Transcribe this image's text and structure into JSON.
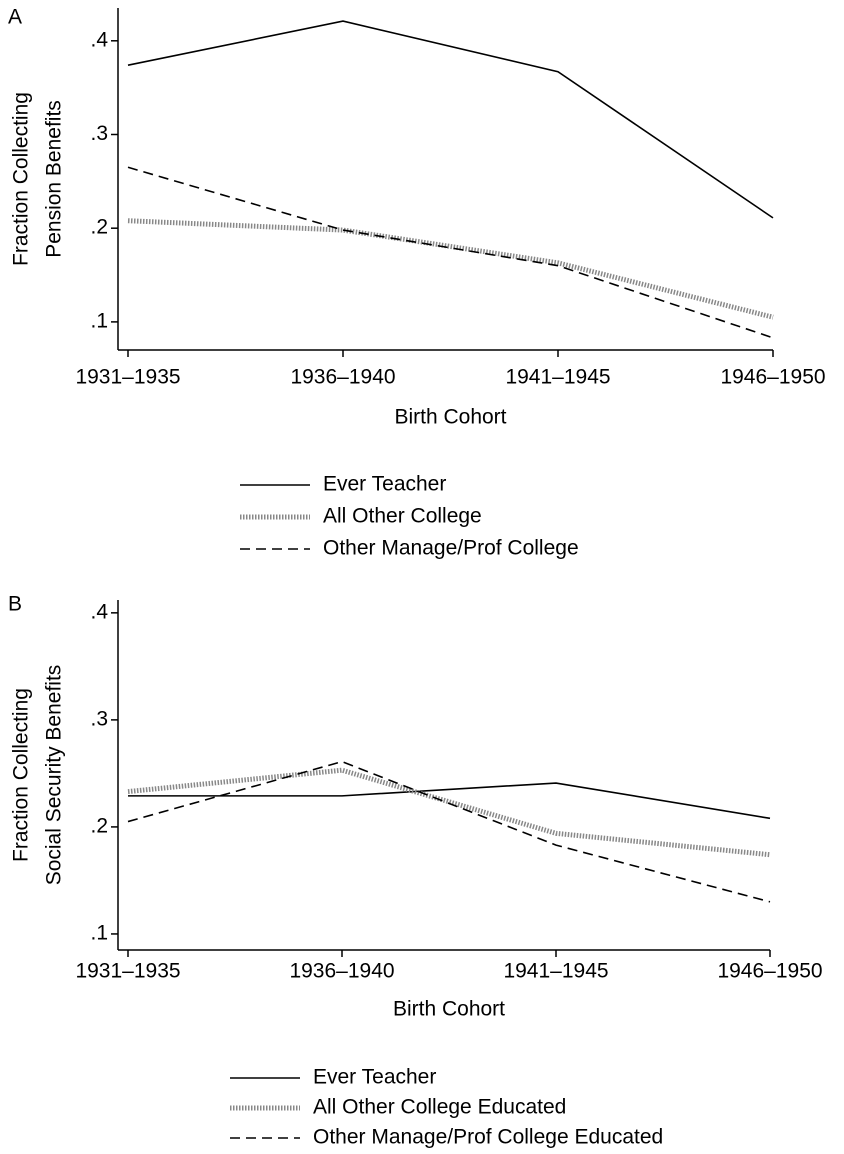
{
  "chart_data": [
    {
      "type": "line",
      "title": "A",
      "y_label": [
        "Fraction Collecting",
        "Pension Benefits"
      ],
      "x_label": "Birth Cohort",
      "categories": [
        "1931–1935",
        "1936–1940",
        "1941–1945",
        "1946–1950"
      ],
      "ylim": [
        0.07,
        0.435
      ],
      "yticks": [
        {
          "value": 0.1,
          "label": ".1"
        },
        {
          "value": 0.2,
          "label": ".2"
        },
        {
          "value": 0.3,
          "label": ".3"
        },
        {
          "value": 0.4,
          "label": ".4"
        }
      ],
      "series": [
        {
          "name": "Ever Teacher",
          "color": "#000000",
          "style": "solid",
          "values": [
            0.374,
            0.421,
            0.367,
            0.211
          ]
        },
        {
          "name": "All Other College",
          "color": "#888888",
          "style": "dotted",
          "values": [
            0.208,
            0.198,
            0.163,
            0.105
          ]
        },
        {
          "name": "Other Manage/Prof College",
          "color": "#000000",
          "style": "dashed",
          "values": [
            0.265,
            0.198,
            0.16,
            0.083
          ]
        }
      ]
    },
    {
      "type": "line",
      "title": "B",
      "y_label": [
        "Fraction Collecting",
        "Social Security Benefits"
      ],
      "x_label": "Birth Cohort",
      "categories": [
        "1931–1935",
        "1936–1940",
        "1941–1945",
        "1946–1950"
      ],
      "ylim": [
        0.085,
        0.412
      ],
      "yticks": [
        {
          "value": 0.1,
          "label": ".1"
        },
        {
          "value": 0.2,
          "label": ".2"
        },
        {
          "value": 0.3,
          "label": ".3"
        },
        {
          "value": 0.4,
          "label": ".4"
        }
      ],
      "series": [
        {
          "name": "Ever Teacher",
          "color": "#000000",
          "style": "solid",
          "values": [
            0.229,
            0.229,
            0.241,
            0.208
          ]
        },
        {
          "name": "All Other College Educated",
          "color": "#888888",
          "style": "dotted",
          "values": [
            0.233,
            0.253,
            0.194,
            0.174
          ]
        },
        {
          "name": "Other Manage/Prof College Educated",
          "color": "#000000",
          "style": "dashed",
          "values": [
            0.205,
            0.261,
            0.183,
            0.13
          ]
        }
      ]
    }
  ]
}
